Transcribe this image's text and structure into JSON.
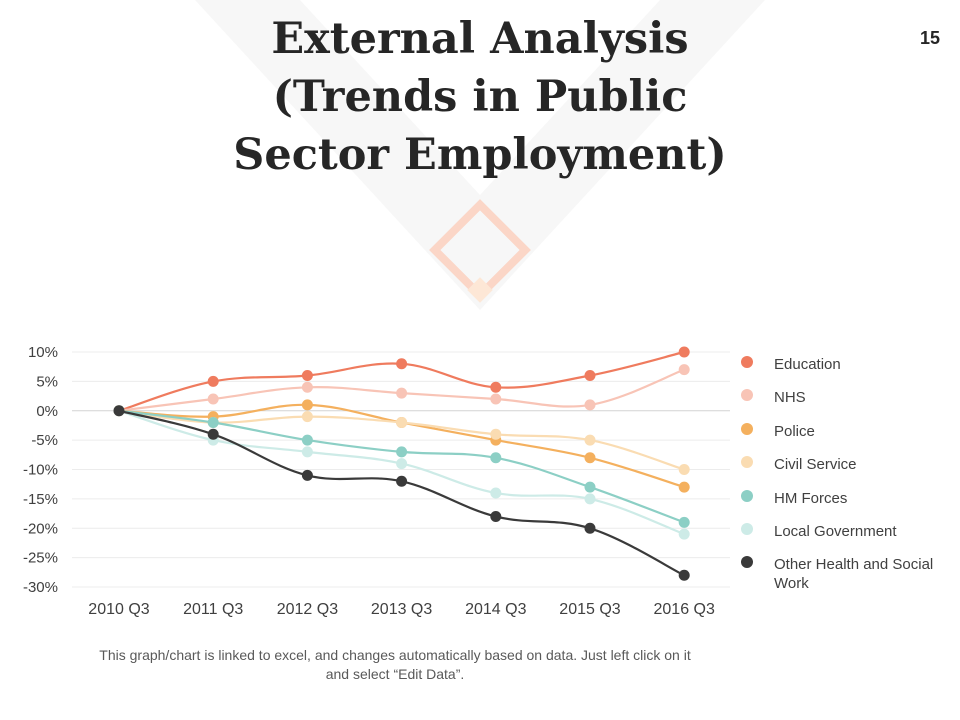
{
  "page": {
    "title_lines": [
      "External Analysis",
      "(Trends in Public",
      "Sector Employment)"
    ],
    "page_number": "15",
    "footnote": "This graph/chart is linked to excel, and changes automatically based on data. Just left click on it and select “Edit Data”."
  },
  "colors": {
    "title": "#262626",
    "decoration_light": "#f7f7f7",
    "decoration_accent": "#fbd6c7",
    "decoration_fill": "#fde7d6",
    "grid": "#ececec"
  },
  "chart_data": {
    "type": "line",
    "title": "",
    "xlabel": "",
    "ylabel": "",
    "categories": [
      "2010 Q3",
      "2011 Q3",
      "2012 Q3",
      "2013 Q3",
      "2014 Q3",
      "2015 Q3",
      "2016 Q3"
    ],
    "ylim": [
      -30,
      10
    ],
    "yticks": [
      10,
      5,
      0,
      -5,
      -10,
      -15,
      -20,
      -25,
      -30
    ],
    "ytick_labels": [
      "10%",
      "5%",
      "0%",
      "-5%",
      "-10%",
      "-15%",
      "-20%",
      "-25%",
      "-30%"
    ],
    "grid": true,
    "legend_position": "right",
    "series": [
      {
        "name": "Education",
        "color": "#ef7b5e",
        "values": [
          0,
          5,
          6,
          8,
          4,
          6,
          10
        ]
      },
      {
        "name": "NHS",
        "color": "#f8c4b6",
        "values": [
          0,
          2,
          4,
          3,
          2,
          1,
          7
        ]
      },
      {
        "name": "Police",
        "color": "#f4b05e",
        "values": [
          0,
          -1,
          1,
          -2,
          -5,
          -8,
          -13
        ]
      },
      {
        "name": "Civil Service",
        "color": "#fadcb2",
        "values": [
          0,
          -2,
          -1,
          -2,
          -4,
          -5,
          -10
        ]
      },
      {
        "name": "HM Forces",
        "color": "#8ccfc5",
        "values": [
          0,
          -2,
          -5,
          -7,
          -8,
          -13,
          -19
        ]
      },
      {
        "name": "Local Government",
        "color": "#cdebe7",
        "values": [
          0,
          -5,
          -7,
          -9,
          -14,
          -15,
          -21
        ]
      },
      {
        "name": "Other Health and Social Work",
        "color": "#3a3a3a",
        "values": [
          0,
          -4,
          -11,
          -12,
          -18,
          -20,
          -28
        ]
      }
    ]
  }
}
